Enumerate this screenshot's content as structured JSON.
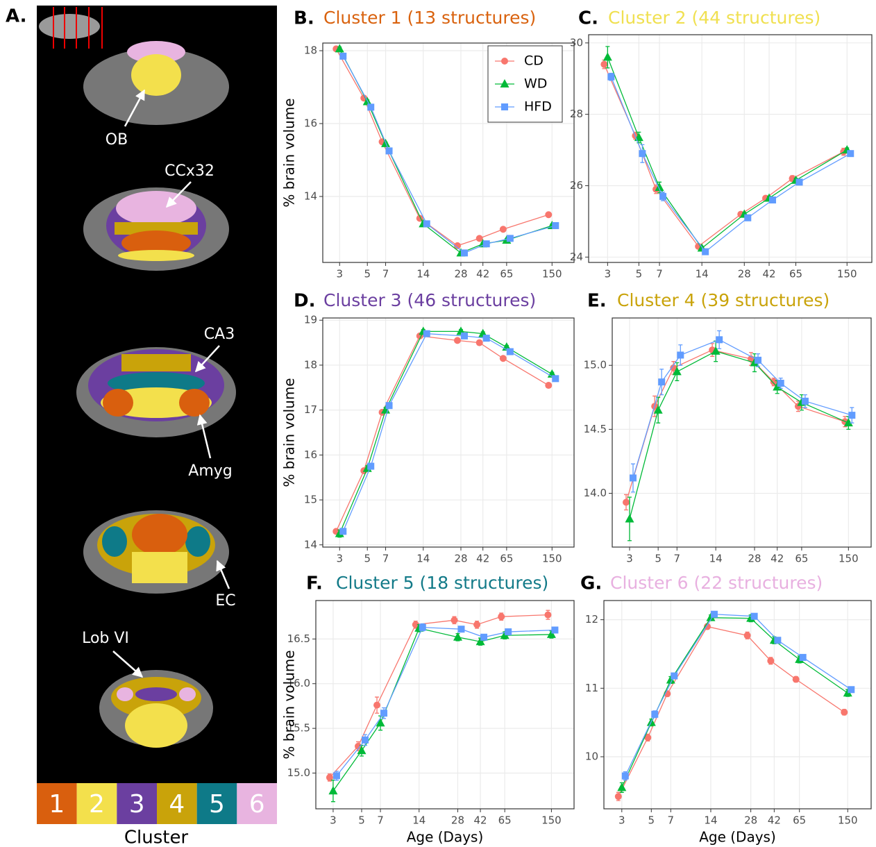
{
  "panel_a": {
    "label": "A.",
    "annotations": [
      "OB",
      "CCx32",
      "CA3",
      "Amyg",
      "EC",
      "Lob VI"
    ],
    "clusters": [
      "1",
      "2",
      "3",
      "4",
      "5",
      "6"
    ],
    "cluster_colors": [
      "#d95f0e",
      "#f3e04c",
      "#6b3fa0",
      "#c9a30a",
      "#0e7a88",
      "#e8b4e0"
    ],
    "legend_title": "Cluster"
  },
  "chart_data": [
    {
      "type": "line",
      "panel_label": "B.",
      "title": "Cluster 1 (13 structures)",
      "title_color": "#d9620e",
      "ylabel": "% brain volume",
      "xscale": "log",
      "grid": true,
      "legend": "top-right",
      "x": [
        3,
        5,
        7,
        14,
        28,
        42,
        65,
        150
      ],
      "xlim": [
        2.2,
        225
      ],
      "xticks": [
        3,
        5,
        7,
        14,
        28,
        42,
        65,
        150
      ],
      "ylim": [
        12.19,
        18.21
      ],
      "yticks": [
        14,
        16,
        18
      ],
      "series": [
        {
          "name": "CD",
          "color": "#f8766d",
          "marker": "circle",
          "values": [
            18.05,
            16.7,
            15.5,
            13.4,
            12.65,
            12.85,
            13.1,
            13.5
          ],
          "errors": [
            0.05,
            0.05,
            0.04,
            0.04,
            0.04,
            0.04,
            0.04,
            0.05
          ]
        },
        {
          "name": "WD",
          "color": "#00ba38",
          "marker": "triangle",
          "values": [
            18.05,
            16.6,
            15.45,
            13.25,
            12.45,
            12.7,
            12.8,
            13.2
          ],
          "errors": [
            0.05,
            0.05,
            0.04,
            0.04,
            0.04,
            0.04,
            0.04,
            0.04
          ]
        },
        {
          "name": "HFD",
          "color": "#619cff",
          "marker": "square",
          "values": [
            17.85,
            16.45,
            15.25,
            13.25,
            12.45,
            12.7,
            12.85,
            13.2
          ],
          "errors": [
            0.05,
            0.05,
            0.04,
            0.04,
            0.04,
            0.04,
            0.04,
            0.04
          ]
        }
      ]
    },
    {
      "type": "line",
      "panel_label": "C.",
      "title": "Cluster 2 (44 structures)",
      "title_color": "#f0e050",
      "xscale": "log",
      "grid": true,
      "x": [
        3,
        5,
        7,
        14,
        28,
        42,
        65,
        150
      ],
      "xlim": [
        2.2,
        225
      ],
      "xticks": [
        3,
        5,
        7,
        14,
        28,
        42,
        65,
        150
      ],
      "ylim": [
        23.85,
        30.23
      ],
      "yticks": [
        24,
        26,
        28,
        30
      ],
      "series": [
        {
          "name": "CD",
          "color": "#f8766d",
          "marker": "circle",
          "values": [
            29.4,
            27.4,
            25.9,
            24.3,
            25.2,
            25.65,
            26.2,
            26.95
          ],
          "errors": [
            0.12,
            0.1,
            0.12,
            0.05,
            0.05,
            0.05,
            0.08,
            0.1
          ]
        },
        {
          "name": "WD",
          "color": "#00ba38",
          "marker": "triangle",
          "values": [
            29.6,
            27.35,
            25.95,
            24.25,
            25.2,
            25.65,
            26.15,
            27.0
          ],
          "errors": [
            0.3,
            0.15,
            0.15,
            0.05,
            0.05,
            0.05,
            0.06,
            0.06
          ]
        },
        {
          "name": "HFD",
          "color": "#619cff",
          "marker": "square",
          "values": [
            29.05,
            26.9,
            25.7,
            24.15,
            25.1,
            25.6,
            26.1,
            26.9
          ],
          "errors": [
            0.1,
            0.25,
            0.12,
            0.05,
            0.06,
            0.05,
            0.05,
            0.05
          ]
        }
      ]
    },
    {
      "type": "line",
      "panel_label": "D.",
      "title": "Cluster 3 (46 structures)",
      "title_color": "#6b3fa0",
      "ylabel": "% brain volume",
      "xscale": "log",
      "grid": true,
      "x": [
        3,
        5,
        7,
        14,
        28,
        42,
        65,
        150
      ],
      "xlim": [
        2.2,
        225
      ],
      "xticks": [
        3,
        5,
        7,
        14,
        28,
        42,
        65,
        150
      ],
      "ylim": [
        13.95,
        19.05
      ],
      "yticks": [
        14,
        15,
        16,
        17,
        18,
        19
      ],
      "series": [
        {
          "name": "CD",
          "color": "#f8766d",
          "marker": "circle",
          "values": [
            14.3,
            15.65,
            16.95,
            18.65,
            18.55,
            18.5,
            18.15,
            17.55
          ],
          "errors": [
            0.05,
            0.05,
            0.05,
            0.04,
            0.04,
            0.04,
            0.04,
            0.04
          ]
        },
        {
          "name": "WD",
          "color": "#00ba38",
          "marker": "triangle",
          "values": [
            14.25,
            15.7,
            17.0,
            18.75,
            18.75,
            18.7,
            18.4,
            17.8
          ],
          "errors": [
            0.08,
            0.06,
            0.06,
            0.04,
            0.04,
            0.04,
            0.04,
            0.04
          ]
        },
        {
          "name": "HFD",
          "color": "#619cff",
          "marker": "square",
          "values": [
            14.3,
            15.75,
            17.1,
            18.7,
            18.65,
            18.6,
            18.3,
            17.7
          ],
          "errors": [
            0.05,
            0.05,
            0.05,
            0.04,
            0.04,
            0.04,
            0.04,
            0.04
          ]
        }
      ]
    },
    {
      "type": "line",
      "panel_label": "E.",
      "title": "Cluster 4 (39 structures)",
      "title_color": "#c9a30a",
      "xscale": "log",
      "grid": true,
      "x": [
        3,
        5,
        7,
        14,
        28,
        42,
        65,
        150
      ],
      "xlim": [
        2.2,
        225
      ],
      "xticks": [
        3,
        5,
        7,
        14,
        28,
        42,
        65,
        150
      ],
      "ylim": [
        13.58,
        15.37
      ],
      "yticks": [
        {
          "value": 14,
          "label": "14.0"
        },
        14.5,
        {
          "value": 15,
          "label": "15.0"
        }
      ],
      "series": [
        {
          "name": "CD",
          "color": "#f8766d",
          "marker": "circle",
          "values": [
            13.93,
            14.68,
            14.98,
            15.12,
            15.05,
            14.87,
            14.68,
            14.56
          ],
          "errors": [
            0.06,
            0.08,
            0.05,
            0.05,
            0.05,
            0.03,
            0.04,
            0.04
          ]
        },
        {
          "name": "WD",
          "color": "#00ba38",
          "marker": "triangle",
          "values": [
            13.8,
            14.65,
            14.95,
            15.11,
            15.02,
            14.83,
            14.71,
            14.55
          ],
          "errors": [
            0.17,
            0.1,
            0.07,
            0.08,
            0.07,
            0.05,
            0.06,
            0.05
          ]
        },
        {
          "name": "HFD",
          "color": "#619cff",
          "marker": "square",
          "values": [
            14.12,
            14.87,
            15.08,
            15.2,
            15.04,
            14.86,
            14.72,
            14.61
          ],
          "errors": [
            0.11,
            0.1,
            0.08,
            0.07,
            0.05,
            0.04,
            0.05,
            0.06
          ]
        }
      ]
    },
    {
      "type": "line",
      "panel_label": "F.",
      "title": "Cluster 5 (18 structures)",
      "title_color": "#127a88",
      "ylabel": "% brain volume",
      "xlabel": "Age (Days)",
      "xscale": "log",
      "grid": true,
      "x": [
        3,
        5,
        7,
        14,
        28,
        42,
        65,
        150
      ],
      "xlim": [
        2.2,
        225
      ],
      "xticks": [
        3,
        5,
        7,
        14,
        28,
        42,
        65,
        150
      ],
      "ylim": [
        14.6,
        16.93
      ],
      "yticks": [
        {
          "value": 15,
          "label": "15.0"
        },
        15.5,
        {
          "value": 16,
          "label": "16.0"
        },
        16.5
      ],
      "series": [
        {
          "name": "CD",
          "color": "#f8766d",
          "marker": "circle",
          "values": [
            14.95,
            15.3,
            15.76,
            16.66,
            16.71,
            16.66,
            16.75,
            16.77
          ],
          "errors": [
            0.04,
            0.05,
            0.09,
            0.04,
            0.04,
            0.04,
            0.04,
            0.05
          ]
        },
        {
          "name": "WD",
          "color": "#00ba38",
          "marker": "triangle",
          "values": [
            14.8,
            15.25,
            15.56,
            16.62,
            16.52,
            16.47,
            16.54,
            16.55
          ],
          "errors": [
            0.12,
            0.06,
            0.08,
            0.04,
            0.04,
            0.04,
            0.04,
            0.04
          ]
        },
        {
          "name": "HFD",
          "color": "#619cff",
          "marker": "square",
          "values": [
            14.97,
            15.37,
            15.67,
            16.63,
            16.61,
            16.52,
            16.58,
            16.6
          ],
          "errors": [
            0.05,
            0.06,
            0.06,
            0.04,
            0.03,
            0.03,
            0.03,
            0.03
          ]
        }
      ]
    },
    {
      "type": "line",
      "panel_label": "G.",
      "title": "Cluster 6 (22 structures)",
      "title_color": "#e8b0e0",
      "xlabel": "Age (Days)",
      "xscale": "log",
      "grid": true,
      "x": [
        3,
        5,
        7,
        14,
        28,
        42,
        65,
        150
      ],
      "xlim": [
        2.2,
        225
      ],
      "xticks": [
        3,
        5,
        7,
        14,
        28,
        42,
        65,
        150
      ],
      "ylim": [
        9.24,
        12.28
      ],
      "yticks": [
        10,
        11,
        12
      ],
      "series": [
        {
          "name": "CD",
          "color": "#f8766d",
          "marker": "circle",
          "values": [
            9.42,
            10.28,
            10.92,
            11.9,
            11.77,
            11.4,
            11.13,
            10.65
          ],
          "errors": [
            0.06,
            0.05,
            0.04,
            0.04,
            0.05,
            0.05,
            0.04,
            0.04
          ]
        },
        {
          "name": "WD",
          "color": "#00ba38",
          "marker": "triangle",
          "values": [
            9.55,
            10.5,
            11.12,
            12.03,
            12.02,
            11.7,
            11.42,
            10.93
          ],
          "errors": [
            0.07,
            0.05,
            0.05,
            0.04,
            0.05,
            0.05,
            0.05,
            0.05
          ]
        },
        {
          "name": "HFD",
          "color": "#619cff",
          "marker": "square",
          "values": [
            9.72,
            10.62,
            11.18,
            12.08,
            12.05,
            11.7,
            11.45,
            10.98
          ],
          "errors": [
            0.06,
            0.05,
            0.04,
            0.03,
            0.04,
            0.04,
            0.04,
            0.04
          ]
        }
      ]
    }
  ]
}
